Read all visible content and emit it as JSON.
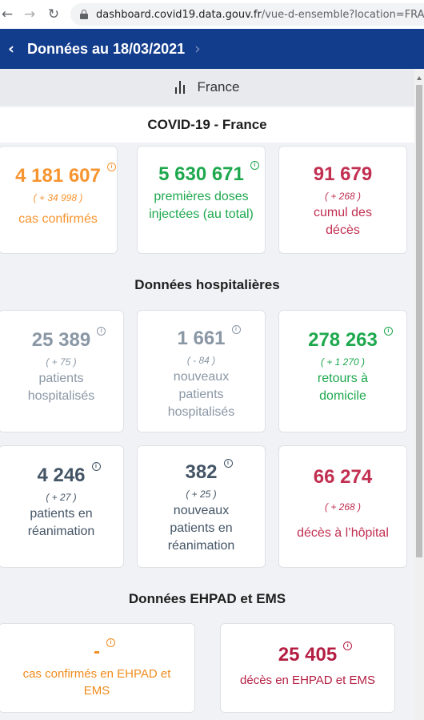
{
  "browser": {
    "url_host": "dashboard.covid19.data.gouv.fr",
    "url_path": "/vue-d-ensemble?location=FRA"
  },
  "header": {
    "title": "Données au 18/03/2021"
  },
  "location": {
    "label": "France"
  },
  "sections": {
    "covid": "COVID-19 - France",
    "hospital": "Données hospitalières",
    "ehpad": "Données EHPAD et EMS"
  },
  "cards": {
    "cas_confirmes": {
      "value": "4 181 607",
      "delta": "( + 34 998 )",
      "label": "cas confirmés"
    },
    "premieres_doses": {
      "value": "5 630 671",
      "label": "premières doses injectées (au total)"
    },
    "cumul_deces": {
      "value": "91 679",
      "delta": "( + 268 )",
      "label": "cumul des décès"
    },
    "patients_hospitalises": {
      "value": "25 389",
      "delta": "( + 75 )",
      "label": "patients hospitalisés"
    },
    "nouveaux_hospitalises": {
      "value": "1 661",
      "delta": "( - 84 )",
      "label": "nouveaux patients hospitalisés"
    },
    "retours_domicile": {
      "value": "278 263",
      "delta": "( + 1 270 )",
      "label": "retours à domicile"
    },
    "patients_reanimation": {
      "value": "4 246",
      "delta": "( + 27 )",
      "label": "patients en réanimation"
    },
    "nouveaux_reanimation": {
      "value": "382",
      "delta": "( + 25 )",
      "label": "nouveaux patients en réanimation"
    },
    "deces_hopital": {
      "value": "66 274",
      "delta": "( + 268 )",
      "label": "décès à l’hôpital"
    },
    "cas_ehpad": {
      "value": "-",
      "label": "cas confirmés en EHPAD et EMS"
    },
    "deces_ehpad": {
      "value": "25 405",
      "label": "décès en EHPAD et EMS"
    }
  },
  "colors": {
    "header_bg": "#123c8c",
    "orange": "#f7942f",
    "green": "#1ea84e",
    "red": "#c12f51",
    "grey": "#8a97a5",
    "slate": "#445566"
  }
}
